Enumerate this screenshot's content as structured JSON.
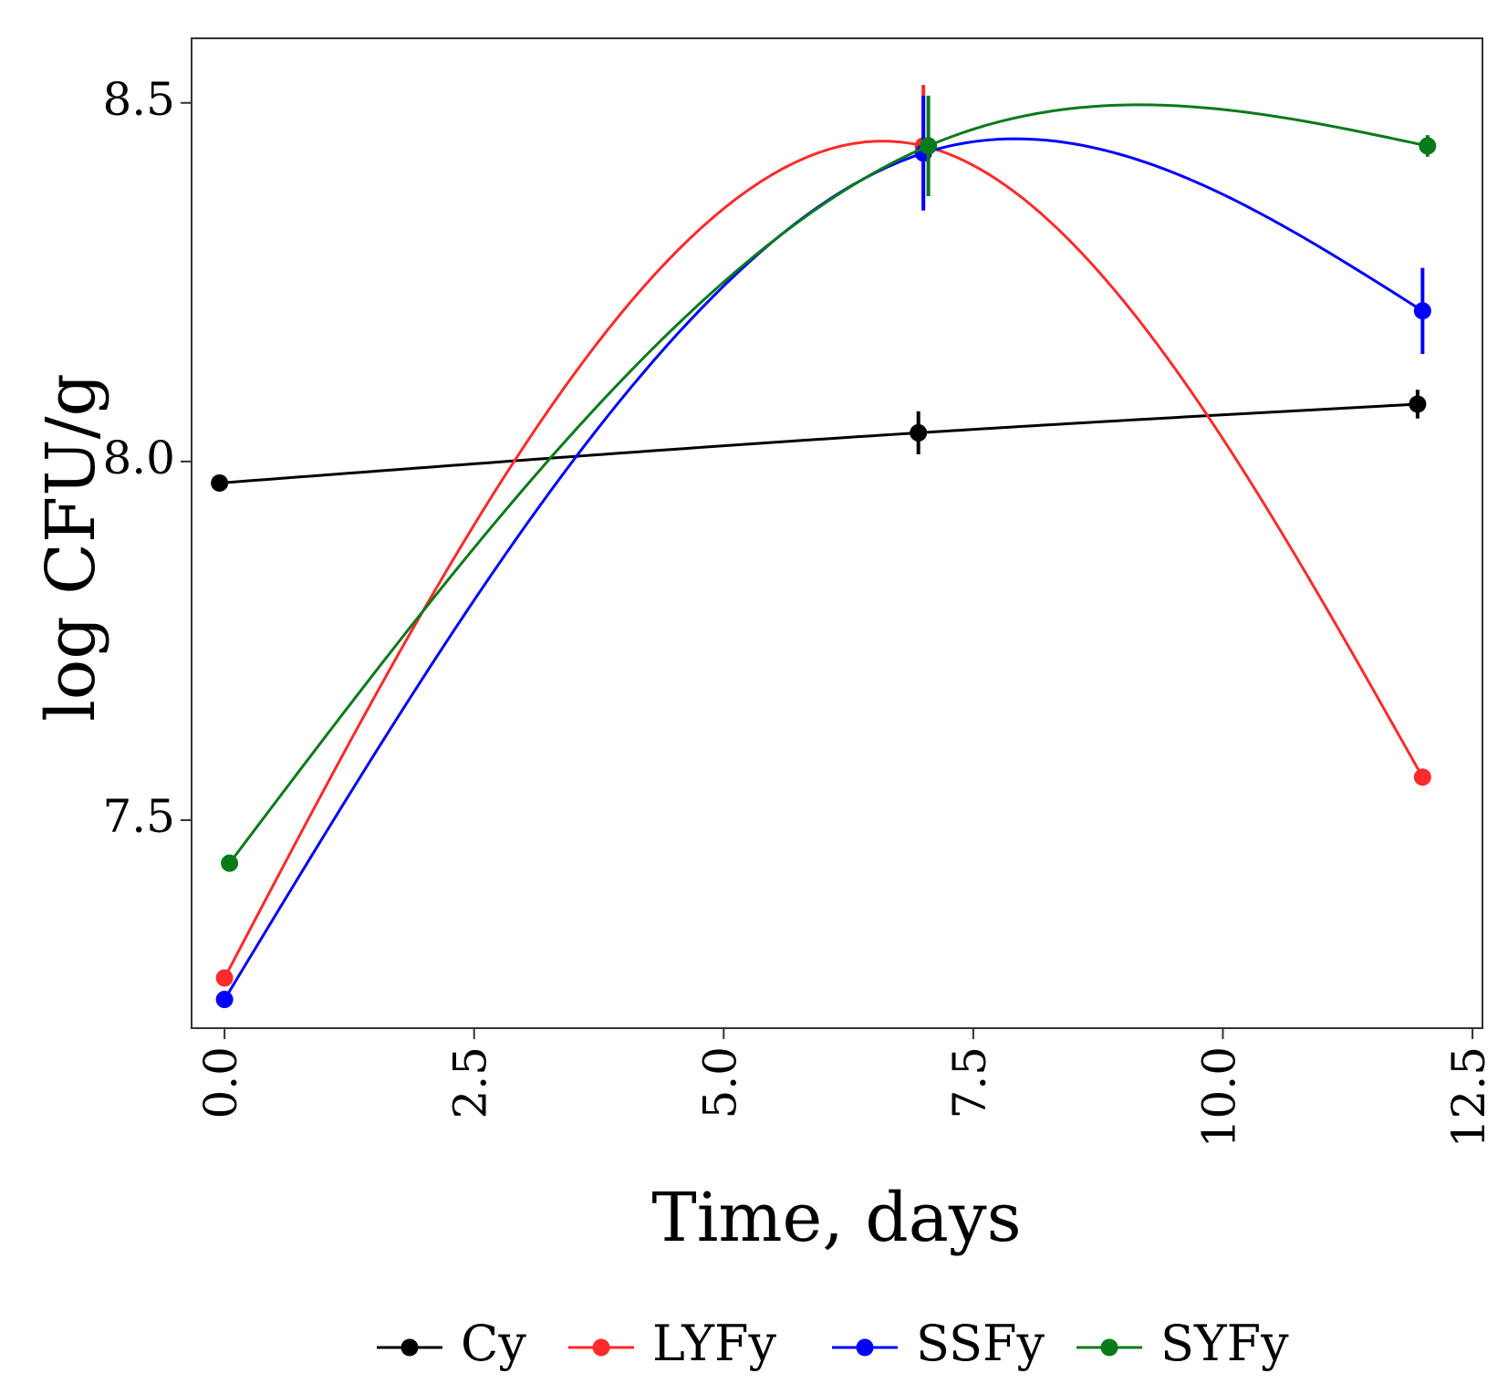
{
  "chart_data": {
    "type": "line",
    "title": "",
    "xlabel": "Time, days",
    "ylabel": "log CFU/g",
    "xlim": [
      -0.33,
      12.6
    ],
    "ylim": [
      7.21,
      8.59
    ],
    "x_ticks": [
      0.0,
      2.5,
      5.0,
      7.5,
      10.0,
      12.5
    ],
    "x_tick_labels": [
      "0.0",
      "2.5",
      "5.0",
      "7.5",
      "10.0",
      "12.5"
    ],
    "y_ticks": [
      7.5,
      8.0,
      8.5
    ],
    "y_tick_labels": [
      "7.5",
      "8.0",
      "8.5"
    ],
    "grid": false,
    "legend_position": "bottom",
    "series": [
      {
        "name": "Cy",
        "color": "#000000",
        "x": [
          -0.05,
          6.95,
          11.95
        ],
        "values": [
          7.97,
          8.04,
          8.08
        ],
        "errors": [
          0.0,
          0.03,
          0.02
        ]
      },
      {
        "name": "LYFy",
        "color": "#FF2A2A",
        "x": [
          0.0,
          7.0,
          12.0
        ],
        "values": [
          7.28,
          8.44,
          7.56
        ],
        "errors": [
          0.0,
          0.085,
          0.0
        ]
      },
      {
        "name": "SSFy",
        "color": "#0000FF",
        "x": [
          0.0,
          7.0,
          12.0
        ],
        "values": [
          7.25,
          8.43,
          8.21
        ],
        "errors": [
          0.0,
          0.08,
          0.06
        ]
      },
      {
        "name": "SYFy",
        "color": "#0A7A1A",
        "x": [
          0.05,
          7.05,
          12.05
        ],
        "values": [
          7.44,
          8.44,
          8.44
        ],
        "errors": [
          0.0,
          0.07,
          0.015
        ]
      }
    ]
  }
}
